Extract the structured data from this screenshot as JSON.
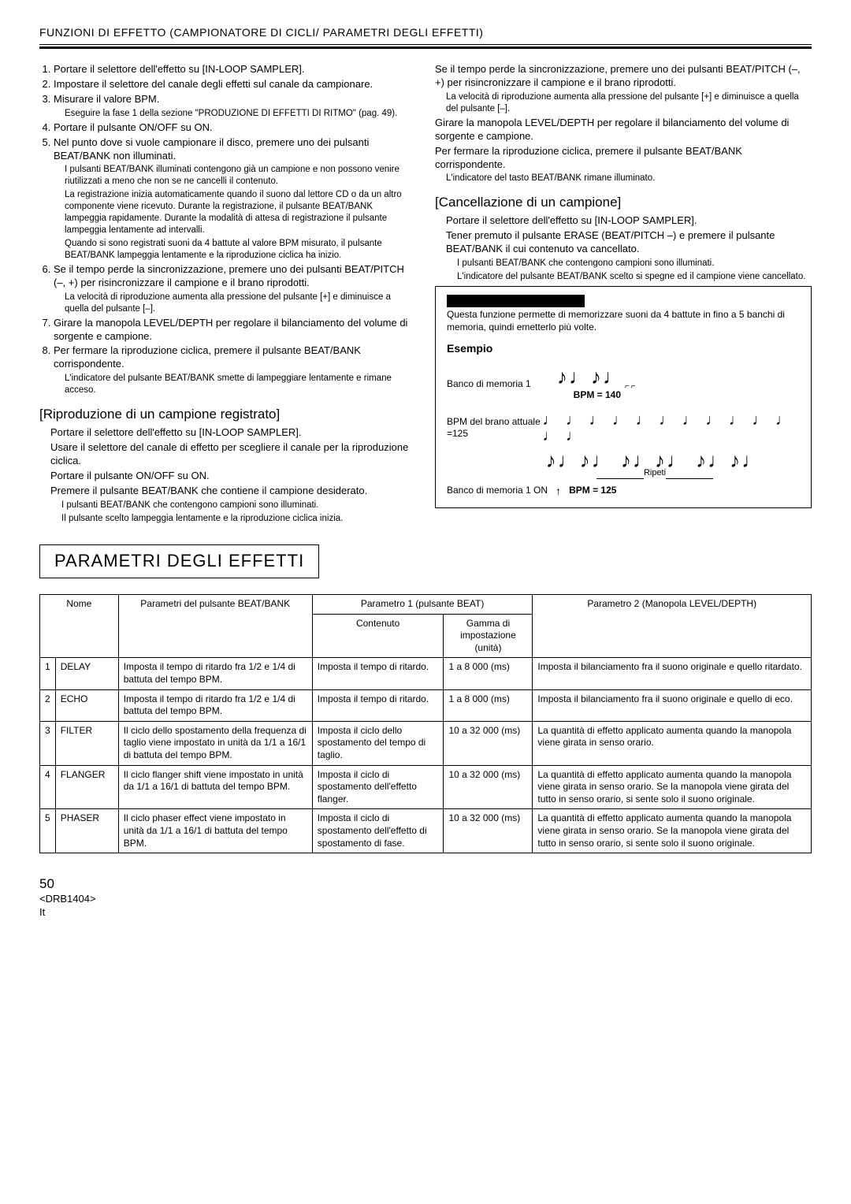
{
  "header": {
    "title": "FUNZIONI DI EFFETTO (CAMPIONATORE DI CICLI/ PARAMETRI DEGLI EFFETTI)"
  },
  "left_col": {
    "steps": [
      {
        "text": "Portare il selettore dell'effetto su [IN-LOOP SAMPLER].",
        "sub": []
      },
      {
        "text": "Impostare il selettore del canale degli effetti sul canale da campionare.",
        "sub": []
      },
      {
        "text": "Misurare il valore BPM.",
        "sub": [
          "Eseguire la fase 1 della sezione \"PRODUZIONE DI EFFETTI DI RITMO\" (pag. 49)."
        ]
      },
      {
        "text": "Portare il pulsante ON/OFF su ON.",
        "sub": []
      },
      {
        "text": "Nel punto dove si vuole campionare il disco, premere uno dei pulsanti BEAT/BANK non illuminati.",
        "sub": [
          "I pulsanti BEAT/BANK illuminati contengono già un campione e non possono venire riutilizzati a meno che non se ne cancelli il contenuto.",
          "La registrazione inizia automaticamente quando il suono dal lettore CD o da un altro componente viene ricevuto. Durante la registrazione, il pulsante BEAT/BANK lampeggia rapidamente. Durante la modalità di attesa di registrazione il pulsante lampeggia lentamente ad intervalli.",
          "Quando si sono registrati suoni da 4 battute al valore BPM misurato, il pulsante BEAT/BANK lampeggia lentamente e la riproduzione ciclica ha inizio."
        ]
      },
      {
        "text": "Se il tempo perde la sincronizzazione, premere uno dei pulsanti BEAT/PITCH (–, +) per risincronizzare il campione e il brano riprodotti.",
        "sub": [
          "La velocità di riproduzione aumenta alla pressione del pulsante [+] e diminuisce a quella del pulsante [–]."
        ]
      },
      {
        "text": "Girare la manopola LEVEL/DEPTH per regolare il bilanciamento del volume di sorgente e campione.",
        "sub": []
      },
      {
        "text": "Per fermare la riproduzione ciclica, premere il pulsante BEAT/BANK corrispondente.",
        "sub": [
          "L'indicatore del pulsante BEAT/BANK smette di lampeggiare lentamente e rimane acceso."
        ]
      }
    ],
    "reproduction": {
      "title": "[Riproduzione di un campione registrato]",
      "p1": "Portare il selettore dell'effetto su [IN-LOOP SAMPLER].",
      "p2": "Usare il selettore del canale di effetto per scegliere il canale per la riproduzione ciclica.",
      "p3": "Portare il pulsante ON/OFF su ON.",
      "p4": "Premere il pulsante BEAT/BANK che contiene il campione desiderato.",
      "sub1": "I pulsanti BEAT/BANK che contengono campioni sono illuminati.",
      "sub2": "Il pulsante scelto lampeggia lentamente e la riproduzione ciclica inizia."
    }
  },
  "right_col": {
    "p1": "Se il tempo perde la sincronizzazione, premere uno dei pulsanti BEAT/PITCH (–, +) per risincronizzare il campione e il brano riprodotti.",
    "sub1": "La velocità di riproduzione aumenta alla pressione del pulsante [+] e diminuisce a quella del pulsante [–].",
    "p2": "Girare la manopola LEVEL/DEPTH per regolare il bilanciamento del volume di sorgente e campione.",
    "p3": "Per fermare la riproduzione ciclica, premere il pulsante BEAT/BANK corrispondente.",
    "sub2": "L'indicatore del tasto BEAT/BANK rimane illuminato.",
    "cancel": {
      "title": "[Cancellazione di un campione]",
      "p1": "Portare il selettore dell'effetto su [IN-LOOP SAMPLER].",
      "p2": "Tener premuto il pulsante ERASE (BEAT/PITCH –) e premere il pulsante BEAT/BANK il cui contenuto va cancellato.",
      "sub1": "I pulsanti BEAT/BANK che contengono campioni sono illuminati.",
      "sub2": "L'indicatore del pulsante BEAT/BANK scelto si spegne ed il campione viene cancellato."
    },
    "diagram": {
      "note": "Questa funzione permette di memorizzare suoni da 4 battute in fino a 5 banchi di memoria, quindi emetterlo più volte.",
      "example_title": "Esempio",
      "bank1_label": "Banco di memoria 1",
      "bpm140": "BPM = 140",
      "bpm_brano_label": "BPM del brano attuale =125",
      "ripeti": "Ripeti",
      "bank1_on": "Banco di memoria 1 ON",
      "bpm125": "BPM = 125"
    }
  },
  "effects_section_title": "PARAMETRI DEGLI EFFETTI",
  "table": {
    "headers": {
      "nome": "Nome",
      "beat_bank": "Parametri del pulsante BEAT/BANK",
      "param1": "Parametro 1 (pulsante BEAT)",
      "contenuto": "Contenuto",
      "gamma": "Gamma di impostazione (unità)",
      "param2": "Parametro 2 (Manopola LEVEL/DEPTH)"
    },
    "rows": [
      {
        "n": "1",
        "name": "DELAY",
        "beat": "Imposta il tempo di ritardo fra 1/2 e 1/4 di battuta del tempo BPM.",
        "cont": "Imposta il tempo di ritardo.",
        "range": "1 a 8 000 (ms)",
        "p2": "Imposta il bilanciamento fra il suono originale e quello ritardato."
      },
      {
        "n": "2",
        "name": "ECHO",
        "beat": "Imposta il tempo di ritardo fra 1/2 e 1/4 di battuta del tempo BPM.",
        "cont": "Imposta il tempo di ritardo.",
        "range": "1 a 8 000 (ms)",
        "p2": "Imposta il bilanciamento fra il suono originale e quello di eco."
      },
      {
        "n": "3",
        "name": "FILTER",
        "beat": "Il ciclo dello spostamento della frequenza di taglio viene impostato in unità da 1/1 a 16/1 di battuta del tempo BPM.",
        "cont": "Imposta il ciclo dello spostamento del tempo di taglio.",
        "range": "10 a 32 000 (ms)",
        "p2": "La quantità di effetto applicato aumenta quando la manopola viene girata in senso orario."
      },
      {
        "n": "4",
        "name": "FLANGER",
        "beat": "Il ciclo flanger shift viene impostato in unità da 1/1 a 16/1 di battuta del tempo BPM.",
        "cont": "Imposta il ciclo di spostamento dell'effetto flanger.",
        "range": "10 a 32 000 (ms)",
        "p2": "La quantità di effetto applicato aumenta quando la manopola viene girata in senso orario. Se la manopola viene girata del tutto in senso orario, si sente solo il suono originale."
      },
      {
        "n": "5",
        "name": "PHASER",
        "beat": "Il ciclo phaser effect viene impostato in unità da 1/1 a 16/1 di battuta del tempo BPM.",
        "cont": "Imposta il ciclo di spostamento dell'effetto di spostamento di fase.",
        "range": "10 a 32 000 (ms)",
        "p2": "La quantità di effetto applicato aumenta quando la manopola viene girata in senso orario. Se la manopola viene girata del tutto in senso orario, si sente solo il suono originale."
      }
    ]
  },
  "footer": {
    "page": "50",
    "code": "<DRB1404>",
    "lang": "It"
  }
}
